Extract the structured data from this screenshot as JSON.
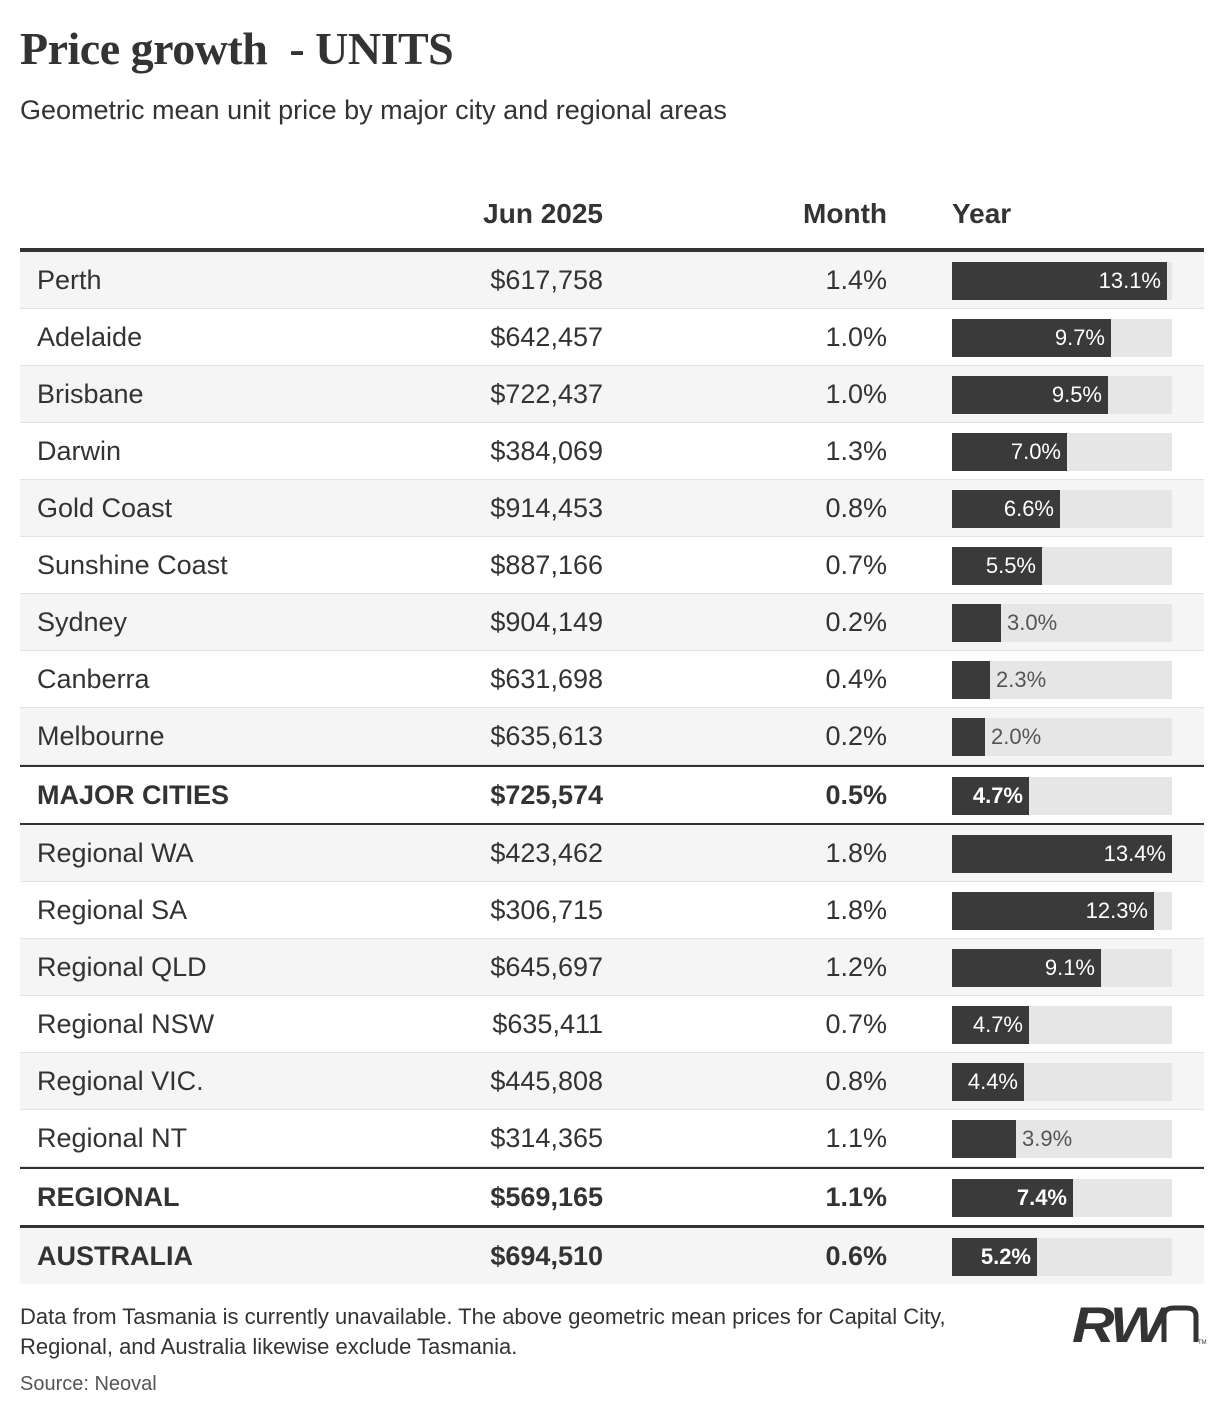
{
  "title": "Price growth  - UNITS",
  "subtitle": "Geometric mean unit price by major city and regional areas",
  "columns": {
    "name": "",
    "price": "Jun 2025",
    "month": "Month",
    "year": "Year"
  },
  "chart_data": {
    "type": "table",
    "bar_max_pct": 13.4,
    "rows": [
      {
        "name": "Perth",
        "price": "$617,758",
        "month": "1.4%",
        "year_label": "13.1%",
        "year": 13.1,
        "style": "normal"
      },
      {
        "name": "Adelaide",
        "price": "$642,457",
        "month": "1.0%",
        "year_label": "9.7%",
        "year": 9.7,
        "style": "normal"
      },
      {
        "name": "Brisbane",
        "price": "$722,437",
        "month": "1.0%",
        "year_label": "9.5%",
        "year": 9.5,
        "style": "normal"
      },
      {
        "name": "Darwin",
        "price": "$384,069",
        "month": "1.3%",
        "year_label": "7.0%",
        "year": 7.0,
        "style": "normal"
      },
      {
        "name": "Gold Coast",
        "price": "$914,453",
        "month": "0.8%",
        "year_label": "6.6%",
        "year": 6.6,
        "style": "normal"
      },
      {
        "name": "Sunshine Coast",
        "price": "$887,166",
        "month": "0.7%",
        "year_label": "5.5%",
        "year": 5.5,
        "style": "normal"
      },
      {
        "name": "Sydney",
        "price": "$904,149",
        "month": "0.2%",
        "year_label": "3.0%",
        "year": 3.0,
        "style": "normal"
      },
      {
        "name": "Canberra",
        "price": "$631,698",
        "month": "0.4%",
        "year_label": "2.3%",
        "year": 2.3,
        "style": "normal"
      },
      {
        "name": "Melbourne",
        "price": "$635,613",
        "month": "0.2%",
        "year_label": "2.0%",
        "year": 2.0,
        "style": "normal"
      },
      {
        "name": "MAJOR CITIES",
        "price": "$725,574",
        "month": "0.5%",
        "year_label": "4.7%",
        "year": 4.7,
        "style": "total-major"
      },
      {
        "name": "Regional WA",
        "price": "$423,462",
        "month": "1.8%",
        "year_label": "13.4%",
        "year": 13.4,
        "style": "normal"
      },
      {
        "name": "Regional SA",
        "price": "$306,715",
        "month": "1.8%",
        "year_label": "12.3%",
        "year": 12.3,
        "style": "normal"
      },
      {
        "name": "Regional QLD",
        "price": "$645,697",
        "month": "1.2%",
        "year_label": "9.1%",
        "year": 9.1,
        "style": "normal"
      },
      {
        "name": "Regional NSW",
        "price": "$635,411",
        "month": "0.7%",
        "year_label": "4.7%",
        "year": 4.7,
        "style": "normal"
      },
      {
        "name": "Regional VIC.",
        "price": "$445,808",
        "month": "0.8%",
        "year_label": "4.4%",
        "year": 4.4,
        "style": "normal"
      },
      {
        "name": "Regional NT",
        "price": "$314,365",
        "month": "1.1%",
        "year_label": "3.9%",
        "year": 3.9,
        "style": "normal"
      },
      {
        "name": "REGIONAL",
        "price": "$569,165",
        "month": "1.1%",
        "year_label": "7.4%",
        "year": 7.4,
        "style": "total-regional"
      },
      {
        "name": "AUSTRALIA",
        "price": "$694,510",
        "month": "0.6%",
        "year_label": "5.2%",
        "year": 5.2,
        "style": "total-aus"
      }
    ]
  },
  "footnote": "Data from Tasmania is currently unavailable. The above geometric mean prices for Capital City, Regional, and Australia likewise exclude Tasmania.",
  "source": "Source: Neoval",
  "logo": {
    "text": "RWn",
    "icon": "rwn-logo",
    "color": "#333333"
  },
  "colors": {
    "bar": "#3a3a3a",
    "track": "#e6e6e6",
    "stripe": "#f5f5f5",
    "text": "#333333"
  }
}
